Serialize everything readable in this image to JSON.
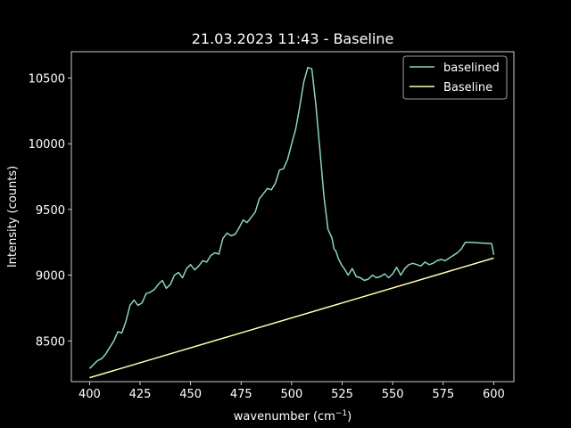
{
  "chart_data": {
    "type": "line",
    "title": "21.03.2023 11:43 - Baseline",
    "xlabel": "wavenumber (cm",
    "xlabel_sup": "−1",
    "xlabel_close": ")",
    "ylabel": "Intensity (counts)",
    "xlim": [
      391,
      610
    ],
    "ylim": [
      8190,
      10700
    ],
    "xticks": [
      400,
      425,
      450,
      475,
      500,
      525,
      550,
      575,
      600
    ],
    "yticks": [
      8500,
      9000,
      9500,
      10000,
      10500
    ],
    "grid": false,
    "legend_position": "top-right",
    "series": [
      {
        "name": "baselined",
        "color": "#8dd3c7",
        "x": [
          400,
          402,
          404,
          406,
          408,
          410,
          412,
          414,
          416,
          418,
          420,
          422,
          424,
          426,
          428,
          430,
          432,
          434,
          436,
          438,
          440,
          442,
          444,
          446,
          448,
          450,
          452,
          454,
          456,
          458,
          460,
          462,
          464,
          466,
          468,
          470,
          472,
          474,
          476,
          478,
          480,
          482,
          484,
          486,
          488,
          490,
          492,
          494,
          496,
          498,
          500,
          502,
          504,
          506,
          508,
          510,
          512,
          514,
          516,
          518,
          520,
          521,
          522,
          523,
          524,
          525,
          526,
          528,
          530,
          532,
          534,
          536,
          538,
          540,
          542,
          544,
          546,
          548,
          550,
          552,
          554,
          556,
          558,
          560,
          562,
          564,
          566,
          568,
          570,
          572,
          574,
          576,
          578,
          580,
          582,
          584,
          586,
          588,
          590,
          592,
          594,
          596,
          598,
          600
        ],
        "values": [
          8290,
          8320,
          8350,
          8365,
          8400,
          8450,
          8500,
          8570,
          8560,
          8650,
          8770,
          8810,
          8770,
          8790,
          8860,
          8870,
          8890,
          8930,
          8960,
          8900,
          8930,
          9000,
          9020,
          8980,
          9050,
          9080,
          9040,
          9070,
          9110,
          9100,
          9150,
          9170,
          9160,
          9280,
          9320,
          9300,
          9310,
          9360,
          9420,
          9400,
          9440,
          9480,
          9580,
          9620,
          9660,
          9650,
          9700,
          9800,
          9810,
          9880,
          10000,
          10110,
          10280,
          10470,
          10580,
          10570,
          10300,
          9950,
          9600,
          9350,
          9280,
          9200,
          9180,
          9130,
          9100,
          9070,
          9050,
          9000,
          9050,
          8990,
          8980,
          8960,
          8970,
          9000,
          8980,
          8990,
          9010,
          8980,
          9010,
          9060,
          9000,
          9050,
          9080,
          9090,
          9080,
          9070,
          9100,
          9080,
          9090,
          9110,
          9120,
          9110,
          9130,
          9150,
          9170,
          9200,
          9250,
          9250,
          9150,
          9150,
          9150,
          9150,
          9150,
          9150
        ],
        "__note": "tail values trimmed in drawing"
      },
      {
        "name": "Baseline",
        "color": "#ffffb3",
        "x": [
          400,
          600
        ],
        "values": [
          8220,
          9130
        ]
      }
    ]
  }
}
